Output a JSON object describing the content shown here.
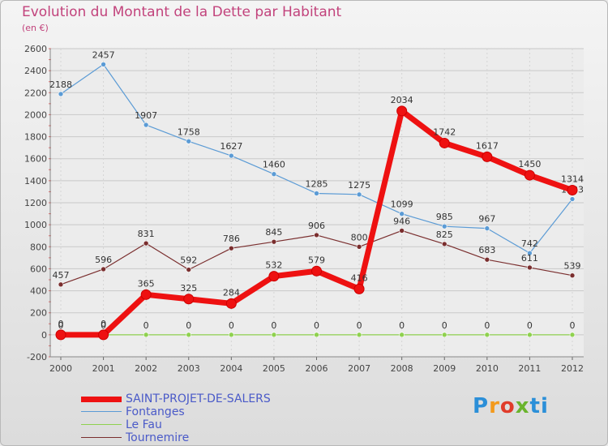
{
  "chart_data": {
    "type": "line",
    "title": "Evolution du Montant de la Dette par Habitant",
    "subtitle": "(en €)",
    "xlabel": "",
    "ylabel": "",
    "ylim": [
      -200,
      2600
    ],
    "yticks": [
      -200,
      0,
      200,
      400,
      600,
      800,
      1000,
      1200,
      1400,
      1600,
      1800,
      2000,
      2200,
      2400,
      2600
    ],
    "categories": [
      "2000",
      "2001",
      "2002",
      "2003",
      "2004",
      "2005",
      "2006",
      "2007",
      "2008",
      "2009",
      "2010",
      "2011",
      "2012"
    ],
    "grid": true,
    "legend_position": "bottom-left",
    "series": [
      {
        "name": "Fontanges",
        "color": "#5b9bd5",
        "values": [
          2188,
          2457,
          1907,
          1758,
          1627,
          1460,
          1285,
          1275,
          1099,
          985,
          967,
          742,
          1233
        ]
      },
      {
        "name": "Tournemire",
        "color": "#7a2e2e",
        "values": [
          457,
          596,
          831,
          592,
          786,
          845,
          906,
          800,
          946,
          825,
          683,
          611,
          539
        ]
      },
      {
        "name": "Le Fau",
        "color": "#8fd14f",
        "values": [
          0,
          0,
          0,
          0,
          0,
          0,
          0,
          0,
          0,
          0,
          0,
          0,
          0
        ]
      },
      {
        "name": "SAINT-PROJET-DE-SALERS",
        "color": "#ee1111",
        "values": [
          0,
          0,
          365,
          325,
          284,
          532,
          579,
          416,
          2034,
          1742,
          1617,
          1450,
          1314
        ]
      }
    ]
  },
  "legend": [
    {
      "name": "SAINT-PROJET-DE-SALERS",
      "color": "#ee1111",
      "thickness": 7
    },
    {
      "name": "Fontanges",
      "color": "#5b9bd5",
      "thickness": 1
    },
    {
      "name": "Le Fau",
      "color": "#8fd14f",
      "thickness": 1
    },
    {
      "name": "Tournemire",
      "color": "#7a2e2e",
      "thickness": 1
    }
  ],
  "logo": {
    "p": "P",
    "r": "r",
    "o": "o",
    "x": "x",
    "i": "i",
    "t": "ti"
  }
}
